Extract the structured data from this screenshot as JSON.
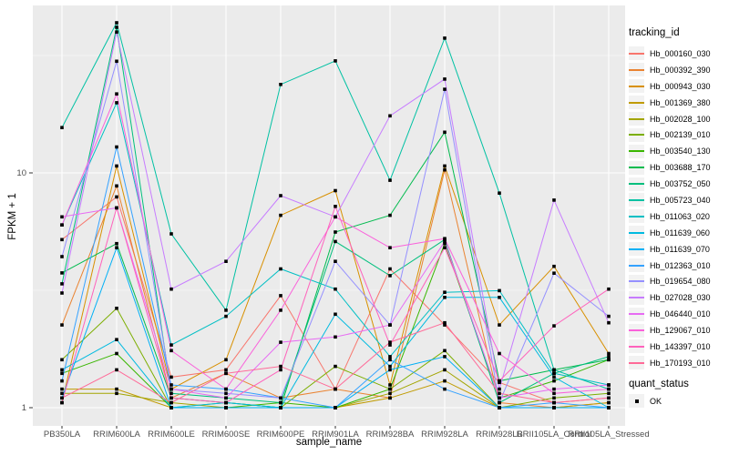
{
  "chart_data": {
    "type": "line",
    "title": "",
    "xlabel": "sample_name",
    "ylabel": "FPKM + 1",
    "yscale": "log10",
    "yticks": [
      1,
      10
    ],
    "minor_yticks": [
      3.162,
      31.62
    ],
    "ylim": [
      0.85,
      50
    ],
    "grid": "white-major-minor-on-grey",
    "legend_position": "right",
    "point_marker": "black-square",
    "categories": [
      "PB350LA",
      "RRIM600LA",
      "RRIM600LE",
      "RRIM600SE",
      "RRIM600PE",
      "RRIM901LA",
      "RRIM928BA",
      "RRIM928LA",
      "RRIM928LB",
      "RRII105LA_Control",
      "RRII105LA_Stressed"
    ],
    "series": [
      {
        "name": "Hb_000160_030",
        "color": "#F8766D",
        "values": [
          5.2,
          7.9,
          1.35,
          1.45,
          3.0,
          1.2,
          3.9,
          2.25,
          1.28,
          1.05,
          1.1
        ]
      },
      {
        "name": "Hb_000392_390",
        "color": "#EA8331",
        "values": [
          2.25,
          8.8,
          1.1,
          1.4,
          1.1,
          1.2,
          1.1,
          10.3,
          1.05,
          1.0,
          1.05
        ]
      },
      {
        "name": "Hb_000943_030",
        "color": "#D89000",
        "values": [
          1.05,
          10.7,
          1.2,
          1.6,
          6.6,
          8.4,
          1.25,
          10.7,
          2.25,
          4.0,
          1.7
        ]
      },
      {
        "name": "Hb_001369_380",
        "color": "#C09B00",
        "values": [
          1.2,
          1.2,
          1.0,
          1.0,
          1.0,
          1.0,
          1.1,
          1.3,
          1.0,
          1.0,
          1.05
        ]
      },
      {
        "name": "Hb_002028_100",
        "color": "#A3A500",
        "values": [
          1.15,
          1.15,
          1.05,
          1.0,
          1.0,
          1.0,
          1.15,
          1.45,
          1.0,
          1.0,
          1.0
        ]
      },
      {
        "name": "Hb_002139_010",
        "color": "#7CAE00",
        "values": [
          1.6,
          2.65,
          1.0,
          1.05,
          1.0,
          1.5,
          1.2,
          1.75,
          1.0,
          1.1,
          1.15
        ]
      },
      {
        "name": "Hb_003540_130",
        "color": "#39B600",
        "values": [
          1.4,
          1.7,
          1.0,
          1.0,
          1.05,
          1.0,
          1.2,
          5.0,
          1.1,
          1.3,
          1.6
        ]
      },
      {
        "name": "Hb_003688_170",
        "color": "#00BB4E",
        "values": [
          3.75,
          5.0,
          1.1,
          1.05,
          1.0,
          5.6,
          6.6,
          14.9,
          1.3,
          1.45,
          1.6
        ]
      },
      {
        "name": "Hb_003752_050",
        "color": "#00BF7D",
        "values": [
          3.37,
          41.7,
          1.15,
          1.1,
          1.05,
          5.1,
          3.65,
          5.2,
          1.05,
          1.4,
          1.65
        ]
      },
      {
        "name": "Hb_005723_040",
        "color": "#00C1A3",
        "values": [
          15.6,
          43.6,
          5.5,
          2.6,
          23.8,
          30.0,
          9.3,
          37.5,
          8.2,
          1.45,
          1.2
        ]
      },
      {
        "name": "Hb_011063_020",
        "color": "#00BFC4",
        "values": [
          6.0,
          19.9,
          1.85,
          2.45,
          3.9,
          3.2,
          1.65,
          3.1,
          3.15,
          1.4,
          1.25
        ]
      },
      {
        "name": "Hb_011639_060",
        "color": "#00BAE0",
        "values": [
          1.45,
          1.95,
          1.0,
          1.05,
          1.0,
          2.5,
          1.5,
          2.95,
          2.95,
          1.35,
          1.0
        ]
      },
      {
        "name": "Hb_011639_070",
        "color": "#00B0F6",
        "values": [
          1.1,
          4.8,
          1.0,
          1.0,
          1.0,
          1.0,
          1.45,
          1.65,
          1.0,
          1.0,
          1.0
        ]
      },
      {
        "name": "Hb_012363_010",
        "color": "#35A2FF",
        "values": [
          1.3,
          12.9,
          1.25,
          1.2,
          1.1,
          1.0,
          1.6,
          1.2,
          1.0,
          1.05,
          1.0
        ]
      },
      {
        "name": "Hb_019654_080",
        "color": "#9590FF",
        "values": [
          4.4,
          29.9,
          1.2,
          1.15,
          1.1,
          4.2,
          2.25,
          22.7,
          1.05,
          3.74,
          2.45
        ]
      },
      {
        "name": "Hb_027028_030",
        "color": "#C77CFF",
        "values": [
          3.08,
          39.8,
          3.2,
          4.2,
          8.0,
          6.5,
          17.5,
          25.1,
          1.2,
          7.66,
          2.3
        ]
      },
      {
        "name": "Hb_046440_010",
        "color": "#E76BF3",
        "values": [
          6.5,
          7.1,
          1.2,
          1.1,
          1.9,
          2.0,
          2.25,
          5.1,
          1.1,
          1.2,
          1.25
        ]
      },
      {
        "name": "Hb_129067_010",
        "color": "#FA62DB",
        "values": [
          6.0,
          21.7,
          1.75,
          1.2,
          2.6,
          6.5,
          4.8,
          5.25,
          1.7,
          1.15,
          1.2
        ]
      },
      {
        "name": "Hb_143397_010",
        "color": "#FF62BC",
        "values": [
          1.05,
          7.1,
          1.1,
          1.05,
          1.45,
          7.2,
          1.85,
          4.8,
          1.3,
          2.23,
          3.2
        ]
      },
      {
        "name": "Hb_170193_010",
        "color": "#FF6A98",
        "values": [
          1.1,
          1.45,
          1.05,
          1.4,
          1.5,
          1.2,
          1.9,
          2.3,
          1.15,
          1.05,
          1.1
        ]
      }
    ]
  },
  "legend": {
    "tracking_title": "tracking_id",
    "quant_title": "quant_status",
    "quant_items": [
      {
        "label": "OK"
      }
    ]
  },
  "colors": {
    "panel_bg": "#EBEBEB",
    "grid_major": "#FFFFFF",
    "grid_minor": "rgba(255,255,255,0.55)",
    "tick_text": "#4D4D4D",
    "tick_mark": "#333333",
    "point": "#000000",
    "legend_key_bg": "#F2F2F2"
  }
}
